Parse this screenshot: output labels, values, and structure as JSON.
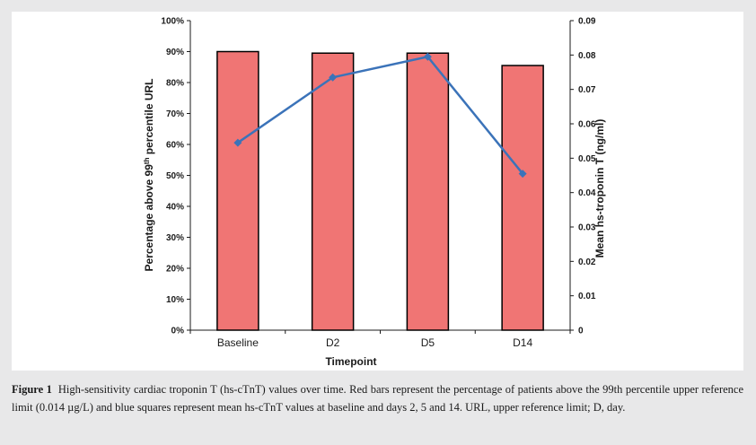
{
  "chart_data": {
    "type": "bar",
    "categories": [
      "Baseline",
      "D2",
      "D5",
      "D14"
    ],
    "series": [
      {
        "type": "bar",
        "axis": "left",
        "values": [
          0.9,
          0.895,
          0.895,
          0.855
        ],
        "color": "#f07574"
      },
      {
        "type": "line",
        "axis": "right",
        "marker": "diamond",
        "values": [
          0.0545,
          0.0735,
          0.0795,
          0.0455
        ],
        "color": "#3b73b9"
      }
    ],
    "xlabel": "Timepoint",
    "ylabel_left": "Percentage above 99th percentile URL",
    "ylabel_left_parts": {
      "pre": "Percentage above 99",
      "sup": "th",
      "post": " percentile URL"
    },
    "ylabel_right": "Mean hs-troponin T (ng/ml)",
    "ylim_left": [
      0,
      1
    ],
    "ylim_right": [
      0,
      0.09
    ],
    "left_ticks": [
      "0%",
      "10%",
      "20%",
      "30%",
      "40%",
      "50%",
      "60%",
      "70%",
      "80%",
      "90%",
      "100%"
    ],
    "right_ticks": [
      "0",
      "0.01",
      "0.02",
      "0.03",
      "0.04",
      "0.05",
      "0.06",
      "0.07",
      "0.08",
      "0.09"
    ],
    "grid": false,
    "legend": "none"
  },
  "caption": {
    "label": "Figure 1",
    "text": "High-sensitivity cardiac troponin T (hs-cTnT) values over time. Red bars represent the percentage of patients above the 99th percentile upper reference limit (0.014 µg/L) and blue squares represent mean hs-cTnT values at baseline and days 2, 5 and 14. URL, upper reference limit; D, day."
  }
}
